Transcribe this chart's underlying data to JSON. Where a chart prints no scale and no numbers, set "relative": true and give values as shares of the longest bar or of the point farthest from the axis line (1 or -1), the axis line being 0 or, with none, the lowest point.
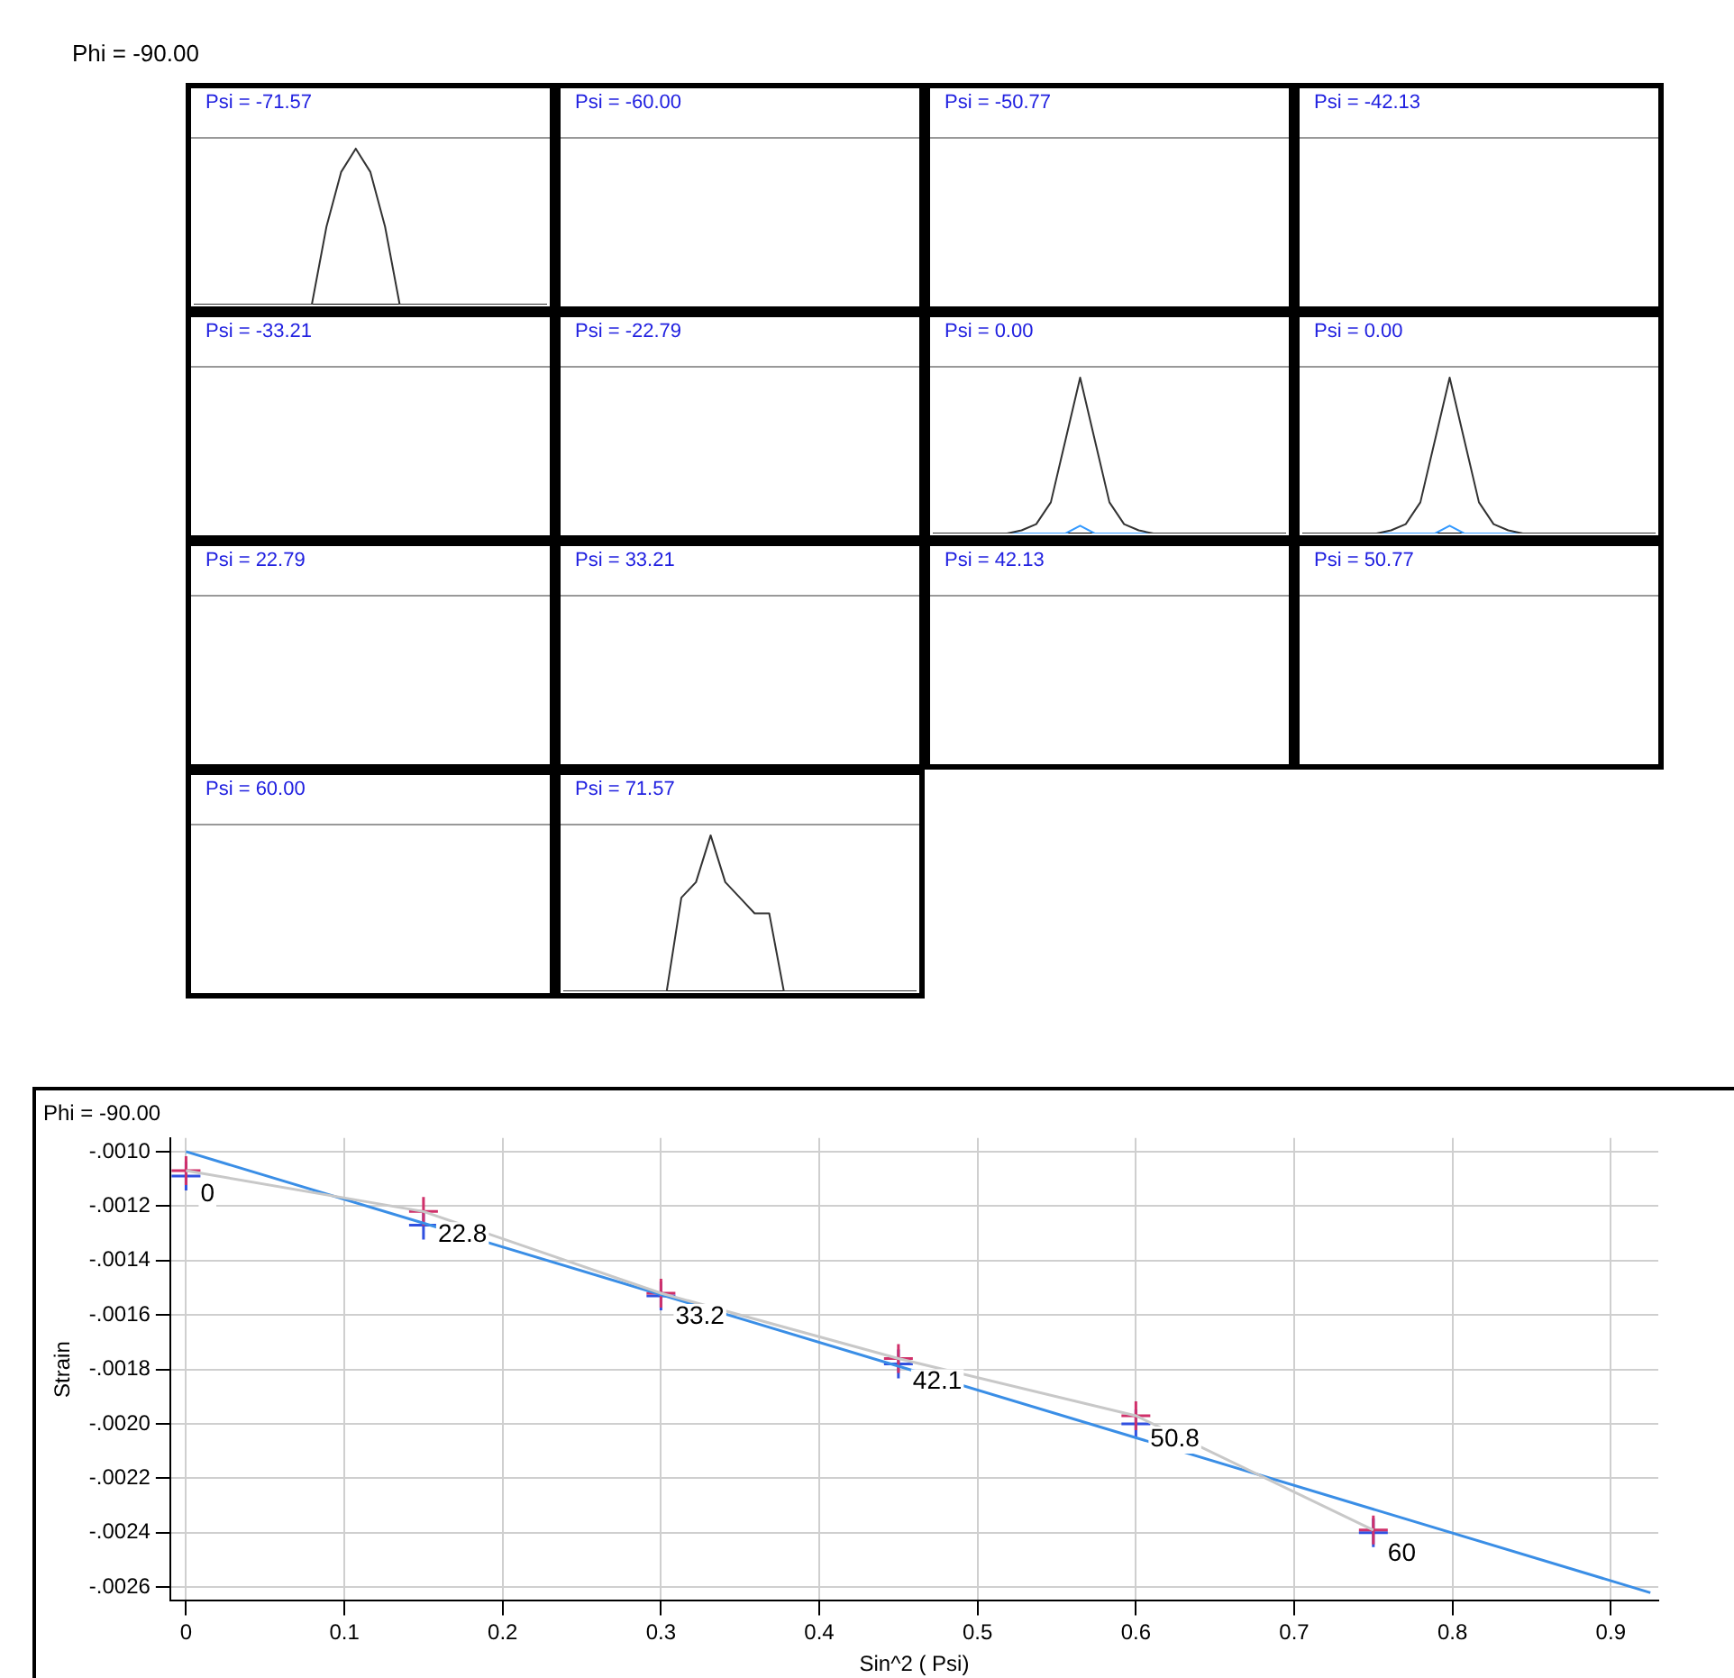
{
  "chart_data": [
    {
      "type": "other",
      "title": "Phi = -90.00"
    },
    {
      "type": "line",
      "relative": true,
      "title": "Psi = -71.57",
      "categories": [
        null,
        null,
        null,
        null,
        null,
        null,
        null,
        null,
        null,
        null,
        null,
        null,
        null,
        null,
        null,
        null,
        null,
        null,
        null,
        null,
        null,
        null,
        null,
        null,
        null
      ],
      "series": [
        {
          "color": "#333333",
          "values": [
            0,
            0,
            0,
            0,
            0,
            0,
            0,
            0,
            0,
            0.5,
            0.85,
            1,
            0.85,
            0.5,
            0,
            0,
            0,
            0,
            0,
            0,
            0,
            0,
            0,
            0,
            0
          ]
        }
      ]
    },
    {
      "type": "other",
      "title": "Psi = -60.00"
    },
    {
      "type": "other",
      "title": "Psi = -50.77"
    },
    {
      "type": "other",
      "title": "Psi = -42.13"
    },
    {
      "type": "other",
      "title": "Psi = -33.21"
    },
    {
      "type": "other",
      "title": "Psi = -22.79"
    },
    {
      "type": "line",
      "relative": true,
      "title": "Psi = 0.00",
      "categories": [
        null,
        null,
        null,
        null,
        null,
        null,
        null,
        null,
        null,
        null,
        null,
        null,
        null,
        null,
        null,
        null,
        null,
        null,
        null,
        null,
        null,
        null,
        null,
        null,
        null
      ],
      "series": [
        {
          "color": "#333333",
          "values": [
            0,
            0,
            0,
            0,
            0,
            0,
            0.02,
            0.06,
            0.2,
            0.6,
            1,
            0.6,
            0.2,
            0.06,
            0.02,
            0,
            0,
            0,
            0,
            0,
            0,
            0,
            0,
            0,
            0
          ]
        },
        {
          "color": "#3399ff",
          "values": [
            null,
            null,
            null,
            null,
            null,
            0,
            0,
            0,
            0,
            0,
            0.05,
            0,
            0,
            0,
            0,
            0,
            null,
            null,
            null,
            null,
            null,
            null,
            null,
            null,
            null
          ]
        }
      ]
    },
    {
      "type": "line",
      "relative": true,
      "title": "Psi = 0.00",
      "categories": [
        null,
        null,
        null,
        null,
        null,
        null,
        null,
        null,
        null,
        null,
        null,
        null,
        null,
        null,
        null,
        null,
        null,
        null,
        null,
        null,
        null,
        null,
        null,
        null,
        null
      ],
      "series": [
        {
          "color": "#333333",
          "values": [
            0,
            0,
            0,
            0,
            0,
            0,
            0.02,
            0.06,
            0.2,
            0.6,
            1,
            0.6,
            0.2,
            0.06,
            0.02,
            0,
            0,
            0,
            0,
            0,
            0,
            0,
            0,
            0,
            0
          ]
        },
        {
          "color": "#3399ff",
          "values": [
            null,
            null,
            null,
            null,
            null,
            0,
            0,
            0,
            0,
            0,
            0.05,
            0,
            0,
            0,
            0,
            0,
            null,
            null,
            null,
            null,
            null,
            null,
            null,
            null,
            null
          ]
        }
      ]
    },
    {
      "type": "other",
      "title": "Psi = 22.79"
    },
    {
      "type": "other",
      "title": "Psi = 33.21"
    },
    {
      "type": "other",
      "title": "Psi = 42.13"
    },
    {
      "type": "other",
      "title": "Psi = 50.77"
    },
    {
      "type": "other",
      "title": "Psi = 60.00"
    },
    {
      "type": "line",
      "relative": true,
      "title": "Psi = 71.57",
      "categories": [
        null,
        null,
        null,
        null,
        null,
        null,
        null,
        null,
        null,
        null,
        null,
        null,
        null,
        null,
        null,
        null,
        null,
        null,
        null,
        null,
        null,
        null,
        null,
        null,
        null
      ],
      "series": [
        {
          "color": "#333333",
          "values": [
            0,
            0,
            0,
            0,
            0,
            0,
            0,
            0,
            0.6,
            0.7,
            1,
            0.7,
            0.6,
            0.5,
            0.5,
            0,
            0,
            0,
            0,
            0,
            0,
            0,
            0,
            0,
            0
          ]
        }
      ]
    },
    {
      "type": "scatter",
      "title": "Phi = -90.00",
      "xlabel": "Sin^2 ( Psi)",
      "ylabel": "Strain",
      "grid": true,
      "xlim": [
        -0.01,
        0.93
      ],
      "xticks": [
        0,
        0.1,
        0.2,
        0.3,
        0.4,
        0.5,
        0.6,
        0.7,
        0.8,
        0.9
      ],
      "ylim": [
        -0.00265,
        -0.00095
      ],
      "yticks": [
        {
          "value": -0.001,
          "label": "-.0010"
        },
        {
          "value": -0.0012,
          "label": "-.0012"
        },
        {
          "value": -0.0014,
          "label": "-.0014"
        },
        {
          "value": -0.0016,
          "label": "-.0016"
        },
        {
          "value": -0.0018,
          "label": "-.0018"
        },
        {
          "value": -0.002,
          "label": "-.0020"
        },
        {
          "value": -0.0022,
          "label": "-.0022"
        },
        {
          "value": -0.0024,
          "label": "-.0024"
        },
        {
          "value": -0.0026,
          "label": "-.0026"
        }
      ],
      "x": [
        0,
        0.15,
        0.3,
        0.45,
        0.6,
        0.75
      ],
      "series": [
        {
          "type": "line",
          "color": "#c8c8c8",
          "marker": "none",
          "values": [
            -0.00107,
            -0.00122,
            -0.00152,
            -0.00176,
            -0.00197,
            -0.00239
          ]
        },
        {
          "type": "line",
          "color": "#3a8ee6",
          "marker": "none",
          "x": [
            0,
            0.925
          ],
          "values": [
            -0.001,
            -0.00262
          ]
        },
        {
          "type": "scatter",
          "color": "#d0306a",
          "marker": "cross",
          "values": [
            -0.00107,
            -0.00122,
            -0.00152,
            -0.00176,
            -0.00197,
            -0.00239
          ]
        },
        {
          "type": "scatter",
          "color": "#3050e0",
          "marker": "cross",
          "values": [
            -0.00109,
            -0.00127,
            -0.00153,
            -0.00178,
            -0.002,
            -0.0024
          ]
        }
      ],
      "annotations": [
        {
          "text": "0",
          "x": 0,
          "y": -0.00107
        },
        {
          "text": "22.8",
          "x": 0.15,
          "y": -0.00122
        },
        {
          "text": "33.2",
          "x": 0.3,
          "y": -0.00152
        },
        {
          "text": "42.1",
          "x": 0.45,
          "y": -0.00176
        },
        {
          "text": "50.8",
          "x": 0.6,
          "y": -0.00197
        },
        {
          "text": "60",
          "x": 0.75,
          "y": -0.00239
        }
      ]
    }
  ]
}
